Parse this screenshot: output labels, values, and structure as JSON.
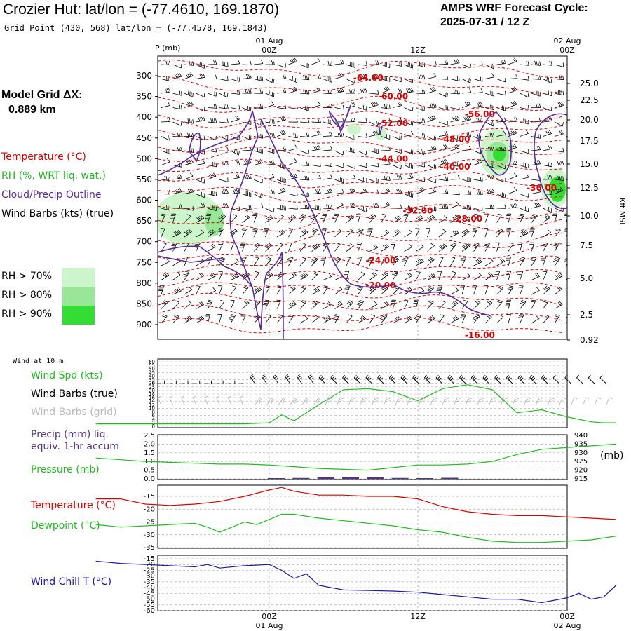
{
  "header": {
    "title": "Crozier Hut:  lat/lon = (-77.4610, 169.1870)",
    "subtitle": "Grid Point (430, 568) lat/lon = (-77.4578, 169.1843)",
    "cycle_line1": "AMPS WRF Forecast Cycle:",
    "cycle_line2": "2025-07-31 / 12  Z"
  },
  "sidebar": {
    "grid_label": "Model Grid ΔX:",
    "grid_value": "0.889 km",
    "legend_temperature": "Temperature (°C)",
    "legend_rh": "RH (%, WRT liq. wat.)",
    "legend_cloud": "Cloud/Precip Outline",
    "legend_wind": "Wind Barbs (kts) (true)",
    "rh_levels": [
      {
        "label": "RH > 70%",
        "color": "#ccf5cc"
      },
      {
        "label": "RH > 80%",
        "color": "#99e699"
      },
      {
        "label": "RH > 90%",
        "color": "#33dd33"
      }
    ]
  },
  "time_axis": {
    "top_labels": [
      {
        "date": "01 Aug",
        "hour": "00Z"
      },
      {
        "date": "",
        "hour": "12Z"
      },
      {
        "date": "02 Aug",
        "hour": "00Z"
      }
    ],
    "bottom_labels": [
      {
        "hour": "00Z",
        "date": "01 Aug"
      },
      {
        "hour": "12Z",
        "date": ""
      },
      {
        "hour": "00Z",
        "date": "02 Aug"
      }
    ]
  },
  "colors": {
    "temperature": "#dd0000",
    "cloud": "#5a2a9a",
    "wind_speed": "#22bb22",
    "pressure": "#22bb22",
    "precip": "#553388",
    "dewpoint": "#22bb22",
    "wind_chill": "#1a1aa8",
    "grid_barbs": "#bbbbbb"
  },
  "chart_data": [
    {
      "type": "heatmap",
      "panel": "cross-section",
      "ylabel_left": "P (mb)",
      "ylabel_right": "Kft MSL",
      "pressure_ticks": [
        300,
        350,
        400,
        450,
        500,
        550,
        600,
        650,
        700,
        750,
        800,
        850,
        900
      ],
      "height_ticks": [
        "25.0",
        "22.5",
        "20.0",
        "17.5",
        "15.0",
        "12.5",
        "10.0",
        "7.5",
        "5.0",
        "2.5",
        "0.92"
      ],
      "temperature_contours": [
        {
          "label": "-64.00",
          "time_h": 8,
          "p": 305
        },
        {
          "label": "-60.00",
          "time_h": 10,
          "p": 350
        },
        {
          "label": "-56.00",
          "time_h": 17,
          "p": 393
        },
        {
          "label": "-52.00",
          "time_h": 10,
          "p": 415
        },
        {
          "label": "-48.00",
          "time_h": 15,
          "p": 453
        },
        {
          "label": "-44.00",
          "time_h": 10,
          "p": 500
        },
        {
          "label": "-40.00",
          "time_h": 15,
          "p": 520
        },
        {
          "label": "-36.00",
          "time_h": 22,
          "p": 570
        },
        {
          "label": "-32.00",
          "time_h": 12,
          "p": 625
        },
        {
          "label": "-28.00",
          "time_h": 16,
          "p": 645
        },
        {
          "label": "-24.00",
          "time_h": 9,
          "p": 745
        },
        {
          "label": "-20.00",
          "time_h": 9,
          "p": 805
        },
        {
          "label": "-16.00",
          "time_h": 17,
          "p": 925
        }
      ]
    },
    {
      "type": "line",
      "panel": "wind-10m",
      "title": "Wind at 10 m",
      "series": [
        {
          "name": "Wind Spd (kts)",
          "x_hours": [
            -14,
            -2,
            0,
            1,
            2,
            4,
            6,
            8,
            10,
            12,
            14,
            16,
            18,
            20,
            22,
            24,
            26,
            27,
            28
          ],
          "values": [
            1,
            1,
            2,
            10,
            4,
            20,
            35,
            36,
            33,
            24,
            36,
            40,
            35,
            12,
            15,
            8,
            3,
            2,
            2
          ]
        }
      ],
      "ylim": [
        0,
        60
      ],
      "ytick_labels": [
        "0",
        "2",
        "4",
        "6",
        "8",
        "10",
        "12",
        "14",
        "16",
        "18",
        "20",
        "25",
        "30",
        "35",
        "40",
        "45",
        "50",
        "55",
        "60"
      ],
      "legend": [
        "Wind Spd (kts)",
        "Wind Barbs (true)",
        "Wind Barbs (grid)"
      ]
    },
    {
      "type": "line",
      "panel": "precip-pressure",
      "series": [
        {
          "name": "Pressure (mb)",
          "x_hours": [
            -14,
            -12,
            -10,
            -8,
            -6,
            -4,
            -2,
            0,
            2,
            4,
            6,
            8,
            10,
            12,
            14,
            16,
            18,
            20,
            22,
            24,
            26,
            28
          ],
          "values": [
            927,
            926,
            925,
            924.5,
            924,
            923.5,
            923.5,
            923,
            922,
            921,
            920.5,
            920,
            921.5,
            923,
            923,
            923.5,
            925,
            929,
            932,
            933,
            934,
            935
          ]
        },
        {
          "name": "Precip (mm) liq. equiv. 1-hr accum",
          "x_hours": [
            0,
            2,
            4,
            6,
            8,
            10,
            12,
            14
          ],
          "values": [
            0,
            0.05,
            0.1,
            0.12,
            0.1,
            0.05,
            0,
            0.06
          ]
        }
      ],
      "ylim_left": [
        0,
        2.5
      ],
      "ytick_labels_left": [
        "0.0",
        "0.5",
        "1.0",
        "1.5",
        "2.0",
        "2.5"
      ],
      "ylim_right": [
        915,
        940
      ],
      "ytick_labels_right": [
        "915",
        "920",
        "925",
        "930",
        "935",
        "940"
      ],
      "ylabel_right": "(mb)"
    },
    {
      "type": "line",
      "panel": "temperature-dewpoint",
      "series": [
        {
          "name": "Temperature (°C)",
          "x_hours": [
            -14,
            -12,
            -10,
            -8,
            -6,
            -4,
            -2,
            0,
            1,
            2,
            4,
            6,
            8,
            10,
            12,
            14,
            16,
            18,
            20,
            22,
            24,
            26,
            28
          ],
          "values": [
            -16,
            -16,
            -18,
            -18.5,
            -18,
            -17,
            -15,
            -12.5,
            -11.5,
            -13,
            -14.5,
            -14.5,
            -15,
            -15,
            -16,
            -19,
            -21,
            -22,
            -22.5,
            -22.5,
            -23,
            -23.5,
            -24
          ]
        },
        {
          "name": "Dewpoint (°C)",
          "x_hours": [
            -14,
            -12,
            -10,
            -8,
            -6,
            -5,
            -4,
            -2,
            -1,
            0,
            1,
            2,
            4,
            6,
            8,
            10,
            12,
            14,
            16,
            18,
            20,
            22,
            24,
            26,
            28
          ],
          "values": [
            -26,
            -27,
            -26.5,
            -26,
            -25.5,
            -27,
            -29,
            -25,
            -26,
            -24,
            -22,
            -22,
            -23.5,
            -24.5,
            -25.5,
            -26.5,
            -28,
            -29,
            -31,
            -32.5,
            -33,
            -33,
            -32.5,
            -32,
            -30.5
          ]
        }
      ],
      "ylim": [
        -35,
        -10
      ],
      "ytick_labels": [
        "-35",
        "-30",
        "-25",
        "-20",
        "-15"
      ]
    },
    {
      "type": "line",
      "panel": "wind-chill",
      "series": [
        {
          "name": "Wind Chill T (°C)",
          "x_hours": [
            -14,
            -12,
            -10,
            -8,
            -6,
            -5,
            -4,
            -2,
            0,
            1,
            2,
            3,
            4,
            6,
            8,
            10,
            12,
            14,
            16,
            18,
            20,
            22,
            24,
            25,
            26,
            27,
            28
          ],
          "values": [
            -17,
            -19,
            -20,
            -21,
            -22,
            -20,
            -23,
            -21,
            -20,
            -25,
            -32,
            -28,
            -38,
            -42,
            -42.5,
            -43,
            -44,
            -46,
            -48,
            -50,
            -50,
            -53,
            -49,
            -45,
            -50,
            -48,
            -38
          ]
        }
      ],
      "ylim": [
        -60,
        -15
      ],
      "ytick_labels": [
        "-60",
        "-55",
        "-50",
        "-45",
        "-40",
        "-35",
        "-30",
        "-25",
        "-20",
        "-15"
      ]
    }
  ]
}
